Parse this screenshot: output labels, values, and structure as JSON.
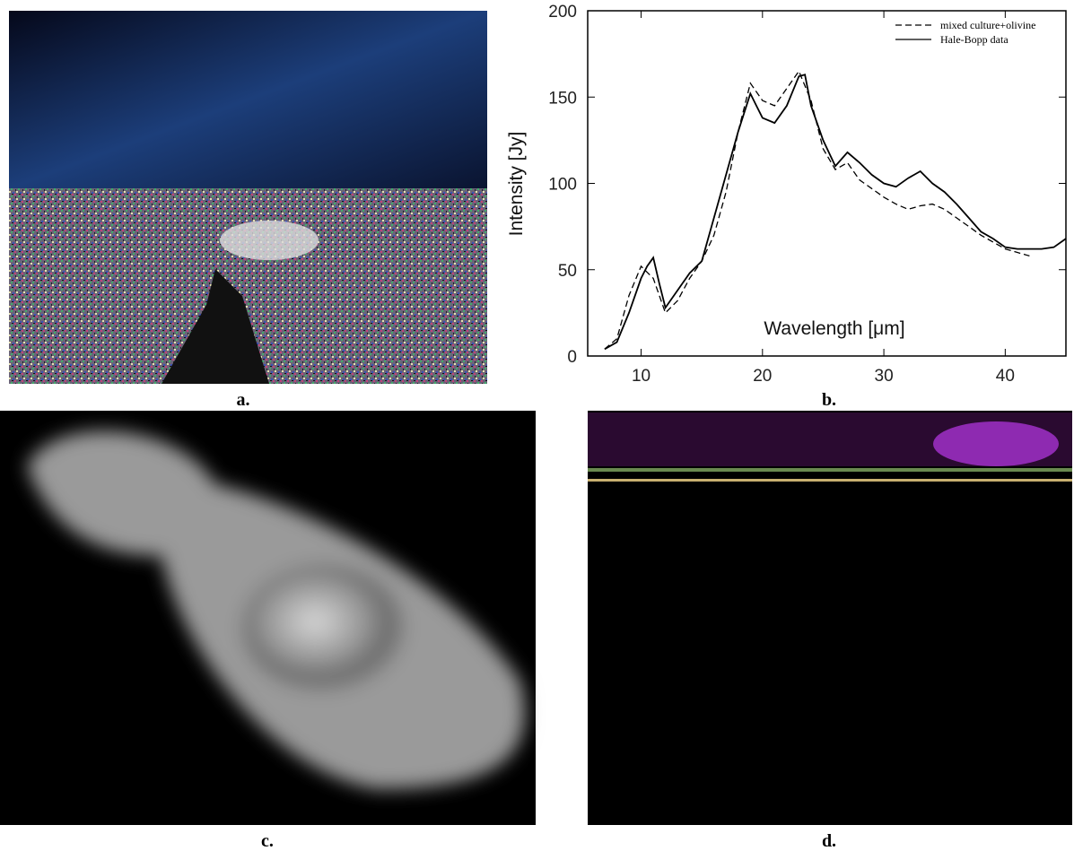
{
  "panels": [
    "a.",
    "b.",
    "c.",
    "d."
  ],
  "chart_data": {
    "type": "line",
    "xlabel": "Wavelength [μm]",
    "ylabel": "Intensity [Jy]",
    "xlim": [
      5.6,
      45
    ],
    "xticks": [
      10,
      20,
      30,
      40
    ],
    "ylim": [
      0,
      200
    ],
    "yticks": [
      0,
      50,
      100,
      150,
      200
    ],
    "legend": "upper right",
    "series": [
      {
        "name": "mixed culture+olivine",
        "color": "#000000",
        "line_style": "dashed",
        "x": [
          7,
          8,
          9,
          10,
          11,
          12,
          13,
          14,
          15,
          16,
          17,
          18,
          19,
          20,
          21,
          22,
          23,
          24,
          25,
          26,
          27,
          28,
          29,
          30,
          31,
          32,
          33,
          34,
          35,
          36,
          37,
          38,
          39,
          40,
          41,
          42
        ],
        "values": [
          4,
          10,
          35,
          52,
          45,
          25,
          32,
          45,
          55,
          70,
          95,
          130,
          158,
          148,
          145,
          155,
          165,
          148,
          120,
          108,
          112,
          102,
          97,
          92,
          88,
          85,
          87,
          88,
          85,
          80,
          75,
          70,
          66,
          62,
          60,
          58
        ]
      },
      {
        "name": "Hale-Bopp data",
        "color": "#000000",
        "line_style": "solid",
        "x": [
          7,
          8,
          9,
          10,
          10.5,
          11,
          11.5,
          12,
          13,
          14,
          15,
          16,
          17,
          18,
          19,
          19.5,
          20,
          21,
          22,
          23,
          23.5,
          24,
          25,
          26,
          27,
          28,
          29,
          30,
          31,
          32,
          33,
          34,
          35,
          36,
          37,
          38,
          39,
          40,
          41,
          42,
          43,
          44,
          45
        ],
        "values": [
          4,
          8,
          25,
          45,
          52,
          57,
          42,
          28,
          38,
          48,
          55,
          80,
          105,
          130,
          152,
          145,
          138,
          135,
          145,
          162,
          163,
          145,
          125,
          110,
          118,
          112,
          105,
          100,
          98,
          103,
          107,
          100,
          95,
          88,
          80,
          72,
          68,
          63,
          62,
          62,
          62,
          63,
          68
        ]
      }
    ]
  }
}
